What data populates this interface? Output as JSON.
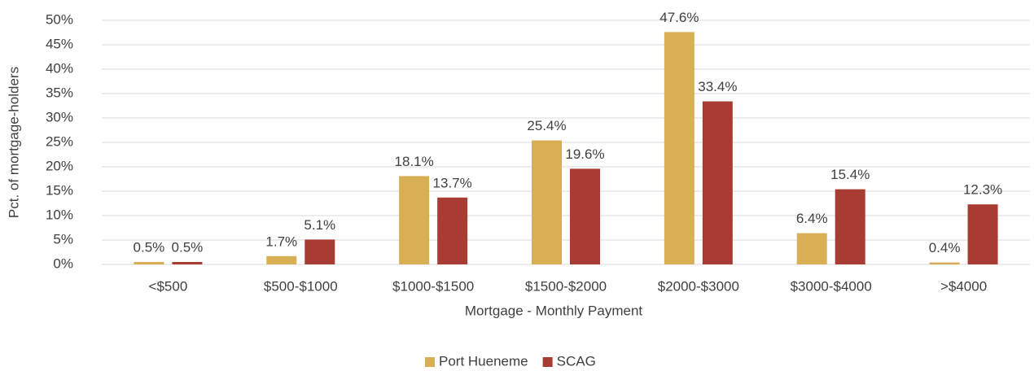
{
  "chart_data": {
    "type": "bar",
    "x_label": "Mortgage - Monthly Payment",
    "y_label": "Pct. of mortgage-holders",
    "categories": [
      "<$500",
      "$500-$1000",
      "$1000-$1500",
      "$1500-$2000",
      "$2000-$3000",
      "$3000-$4000",
      ">$4000"
    ],
    "series": [
      {
        "name": "Port Hueneme",
        "color": "#d9af55",
        "values": [
          0.5,
          1.7,
          18.1,
          25.4,
          47.6,
          6.4,
          0.4
        ],
        "value_labels": [
          "0.5%",
          "1.7%",
          "18.1%",
          "25.4%",
          "47.6%",
          "6.4%",
          "0.4%"
        ]
      },
      {
        "name": "SCAG",
        "color": "#a93c32",
        "values": [
          0.5,
          5.1,
          13.7,
          19.6,
          33.4,
          15.4,
          12.3
        ],
        "value_labels": [
          "0.5%",
          "5.1%",
          "13.7%",
          "19.6%",
          "33.4%",
          "15.4%",
          "12.3%"
        ]
      }
    ],
    "ylim": [
      0,
      50
    ],
    "yticks": [
      {
        "value": 0,
        "label": "0%"
      },
      {
        "value": 5,
        "label": "5%"
      },
      {
        "value": 10,
        "label": "10%"
      },
      {
        "value": 15,
        "label": "15%"
      },
      {
        "value": 20,
        "label": "20%"
      },
      {
        "value": 25,
        "label": "25%"
      },
      {
        "value": 30,
        "label": "30%"
      },
      {
        "value": 35,
        "label": "35%"
      },
      {
        "value": 40,
        "label": "40%"
      },
      {
        "value": 45,
        "label": "45%"
      },
      {
        "value": 50,
        "label": "50%"
      }
    ],
    "grid": true,
    "legend": "bottom"
  }
}
